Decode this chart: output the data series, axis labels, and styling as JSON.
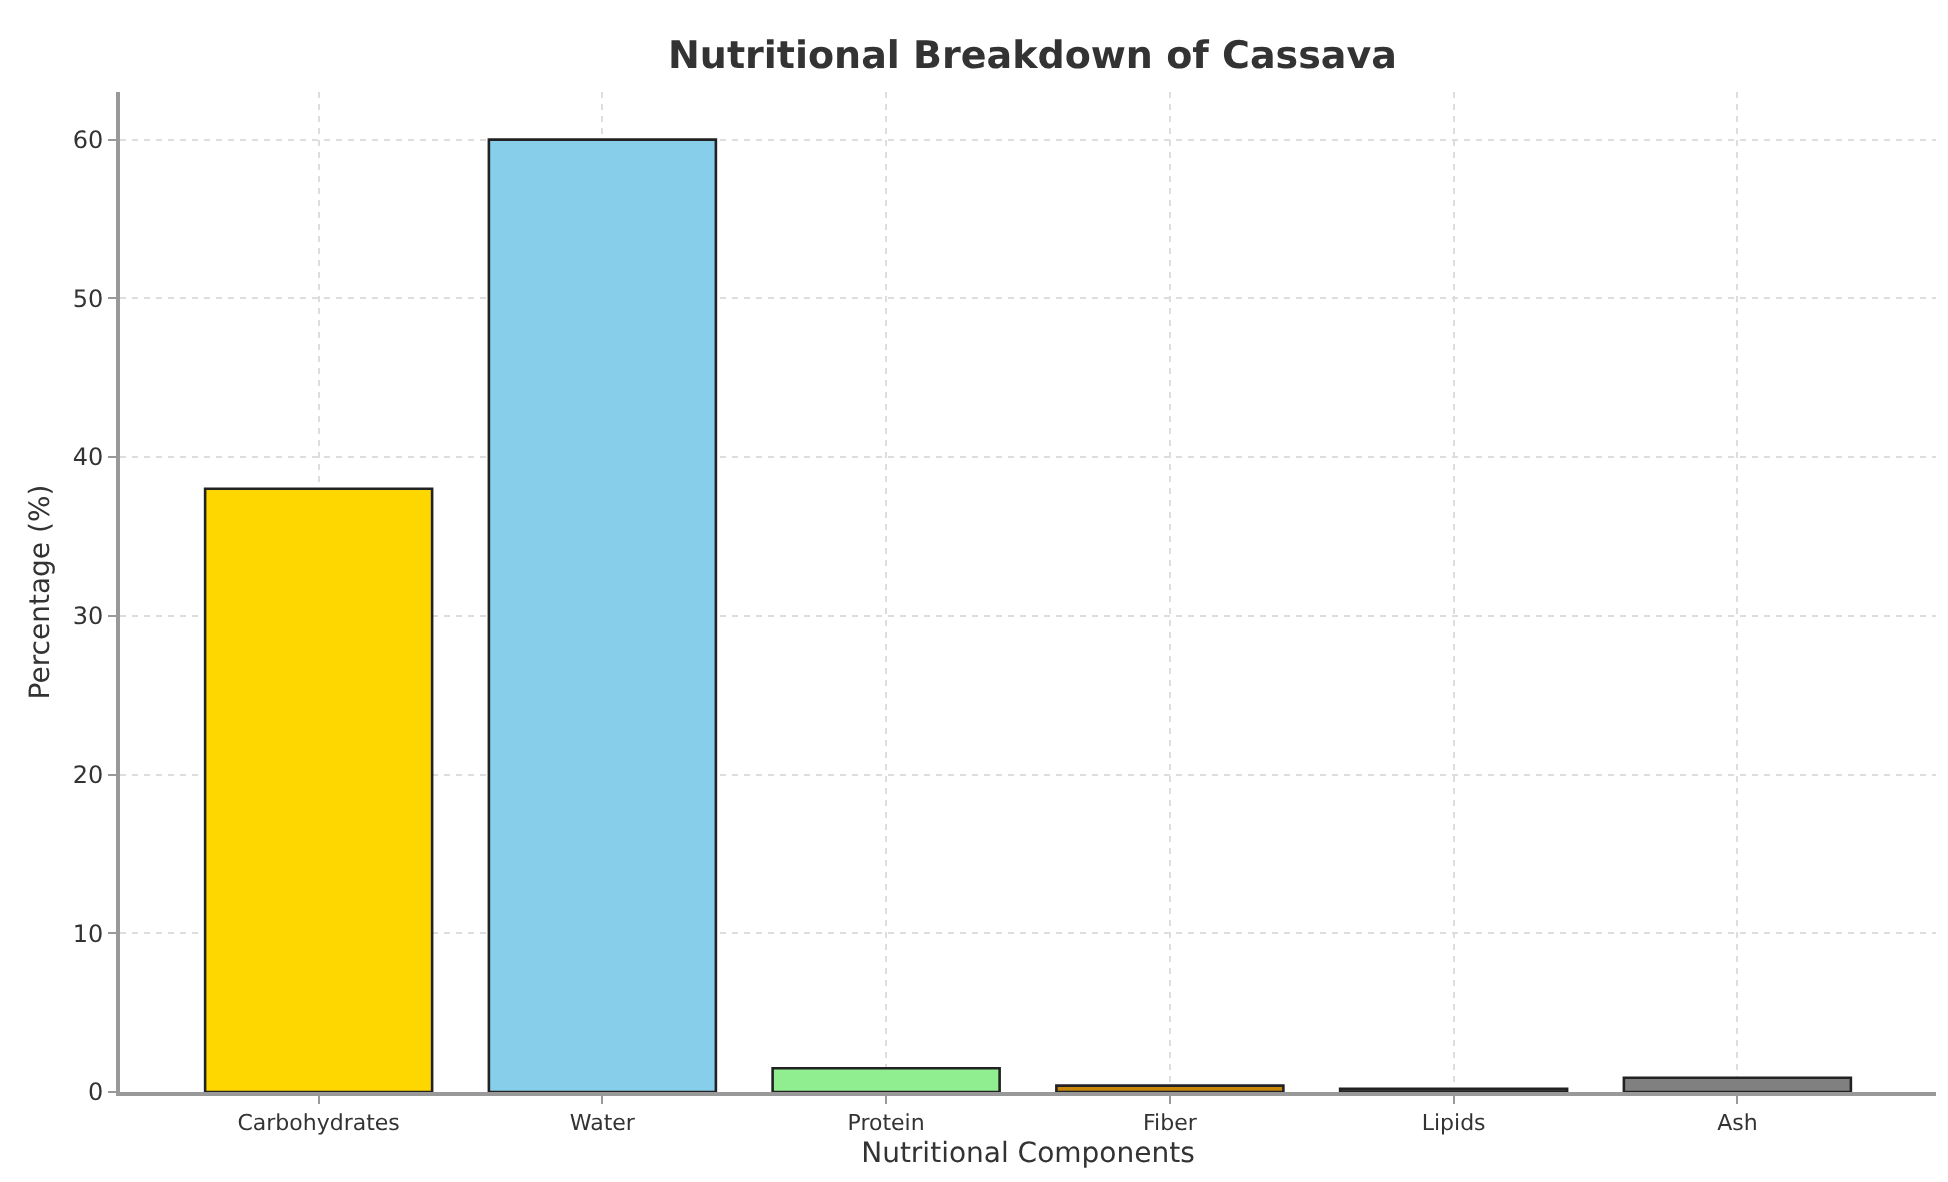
{
  "chart_data": {
    "type": "bar",
    "title": "Nutritional Breakdown of Cassava",
    "xlabel": "Nutritional Components",
    "ylabel": "Percentage (%)",
    "categories": [
      "Carbohydrates",
      "Water",
      "Protein",
      "Fiber",
      "Lipids",
      "Ash"
    ],
    "values": [
      38,
      60,
      1.5,
      0.4,
      0.2,
      0.9
    ],
    "colors": [
      "#ffd700",
      "#87ceeb",
      "#90ee90",
      "#c8860b",
      "#404040",
      "#808080"
    ],
    "ylim": [
      0,
      63
    ],
    "yticks": [
      0,
      10,
      20,
      30,
      40,
      50,
      60
    ],
    "grid": true
  }
}
